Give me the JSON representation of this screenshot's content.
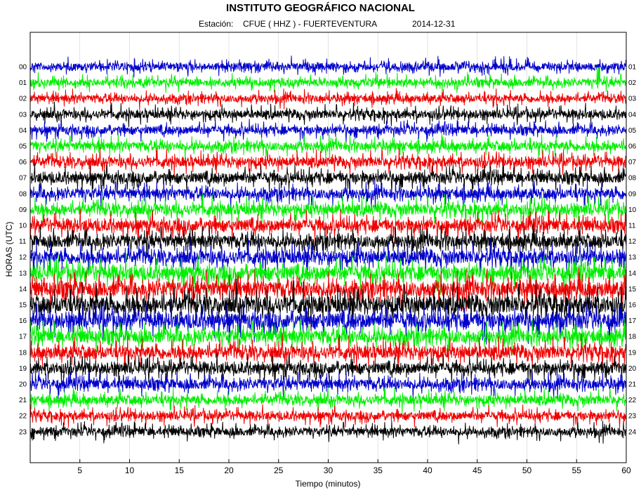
{
  "header": {
    "title": "INSTITUTO GEOGRÁFICO NACIONAL",
    "station_prefix": "Estación:",
    "station": "CFUE ( HHZ ) - FUERTEVENTURA",
    "date": "2014-12-31"
  },
  "chart_data": {
    "type": "line",
    "title": "INSTITUTO GEOGRÁFICO NACIONAL",
    "xlabel": "Tiempo (minutos)",
    "ylabel": "HORAS (UTC)",
    "xlim": [
      0,
      60
    ],
    "x_ticks": [
      5,
      10,
      15,
      20,
      25,
      30,
      35,
      40,
      45,
      50,
      55,
      60
    ],
    "left_hour_labels": [
      "00",
      "01",
      "02",
      "03",
      "04",
      "05",
      "06",
      "07",
      "08",
      "09",
      "10",
      "11",
      "12",
      "13",
      "14",
      "15",
      "16",
      "17",
      "18",
      "19",
      "20",
      "21",
      "22",
      "23"
    ],
    "right_hour_labels": [
      "01",
      "02",
      "03",
      "04",
      "05",
      "06",
      "07",
      "08",
      "09",
      "10",
      "11",
      "12",
      "13",
      "14",
      "15",
      "16",
      "17",
      "18",
      "19",
      "20",
      "21",
      "22",
      "23",
      "24"
    ],
    "trace_colors": [
      "#0000cc",
      "#00ee00",
      "#ee0000",
      "#000000"
    ],
    "grid": true,
    "series": [
      {
        "hour": "00",
        "amplitude": 0.1
      },
      {
        "hour": "01",
        "amplitude": 0.1,
        "event_minute": 57.2
      },
      {
        "hour": "02",
        "amplitude": 0.1
      },
      {
        "hour": "03",
        "amplitude": 0.11
      },
      {
        "hour": "04",
        "amplitude": 0.11
      },
      {
        "hour": "05",
        "amplitude": 0.12
      },
      {
        "hour": "06",
        "amplitude": 0.13
      },
      {
        "hour": "07",
        "amplitude": 0.14
      },
      {
        "hour": "08",
        "amplitude": 0.14
      },
      {
        "hour": "09",
        "amplitude": 0.15
      },
      {
        "hour": "10",
        "amplitude": 0.16
      },
      {
        "hour": "11",
        "amplitude": 0.17
      },
      {
        "hour": "12",
        "amplitude": 0.18
      },
      {
        "hour": "13",
        "amplitude": 0.19
      },
      {
        "hour": "14",
        "amplitude": 0.21
      },
      {
        "hour": "15",
        "amplitude": 0.23
      },
      {
        "hour": "16",
        "amplitude": 0.21
      },
      {
        "hour": "17",
        "amplitude": 0.18
      },
      {
        "hour": "18",
        "amplitude": 0.17
      },
      {
        "hour": "19",
        "amplitude": 0.15
      },
      {
        "hour": "20",
        "amplitude": 0.14
      },
      {
        "hour": "21",
        "amplitude": 0.12
      },
      {
        "hour": "22",
        "amplitude": 0.11
      },
      {
        "hour": "23",
        "amplitude": 0.11
      }
    ]
  }
}
